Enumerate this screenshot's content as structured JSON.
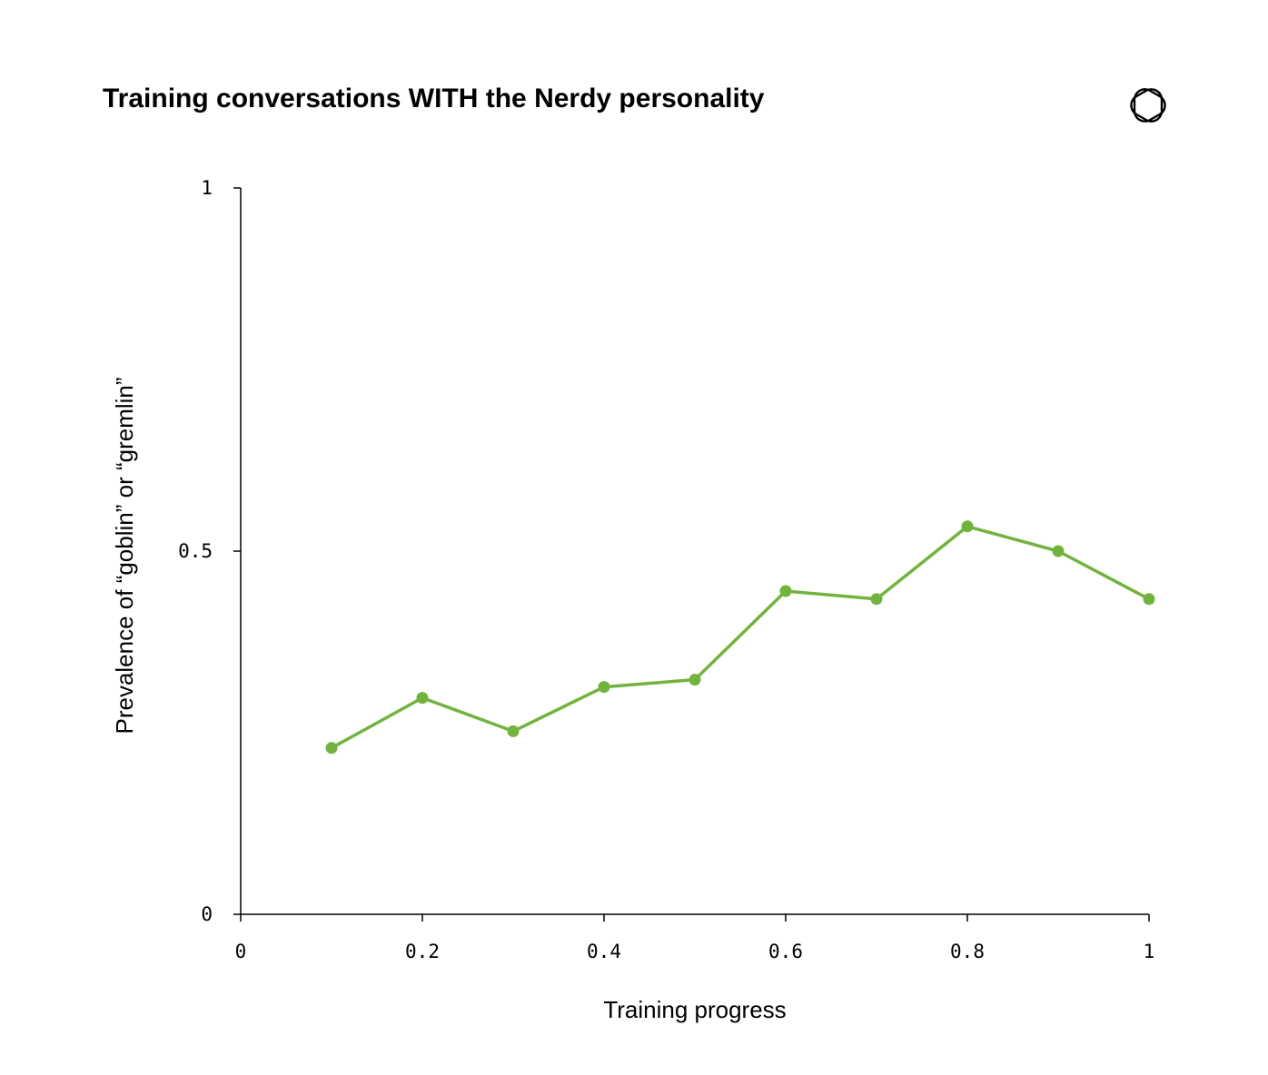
{
  "chart_data": {
    "type": "line",
    "title": "Training conversations WITH the Nerdy personality",
    "xlabel": "Training progress",
    "ylabel": "Prevalence of “goblin” or “gremlin”",
    "xlim": [
      0,
      1
    ],
    "ylim": [
      0,
      1
    ],
    "xticks": [
      "0",
      "0.2",
      "0.4",
      "0.6",
      "0.8",
      "1"
    ],
    "xtick_values": [
      0,
      0.2,
      0.4,
      0.6,
      0.8,
      1
    ],
    "yticks": [
      "0",
      "0.5",
      "1"
    ],
    "ytick_values": [
      0,
      0.5,
      1
    ],
    "grid": false,
    "series": [
      {
        "color": "#72b33e",
        "x": [
          0.1,
          0.2,
          0.3,
          0.4,
          0.5,
          0.6,
          0.7,
          0.8,
          0.9,
          1.0
        ],
        "y": [
          0.229,
          0.298,
          0.252,
          0.313,
          0.323,
          0.445,
          0.434,
          0.534,
          0.5,
          0.434
        ]
      }
    ]
  },
  "brand": {
    "icon": "openai-logo-icon"
  }
}
